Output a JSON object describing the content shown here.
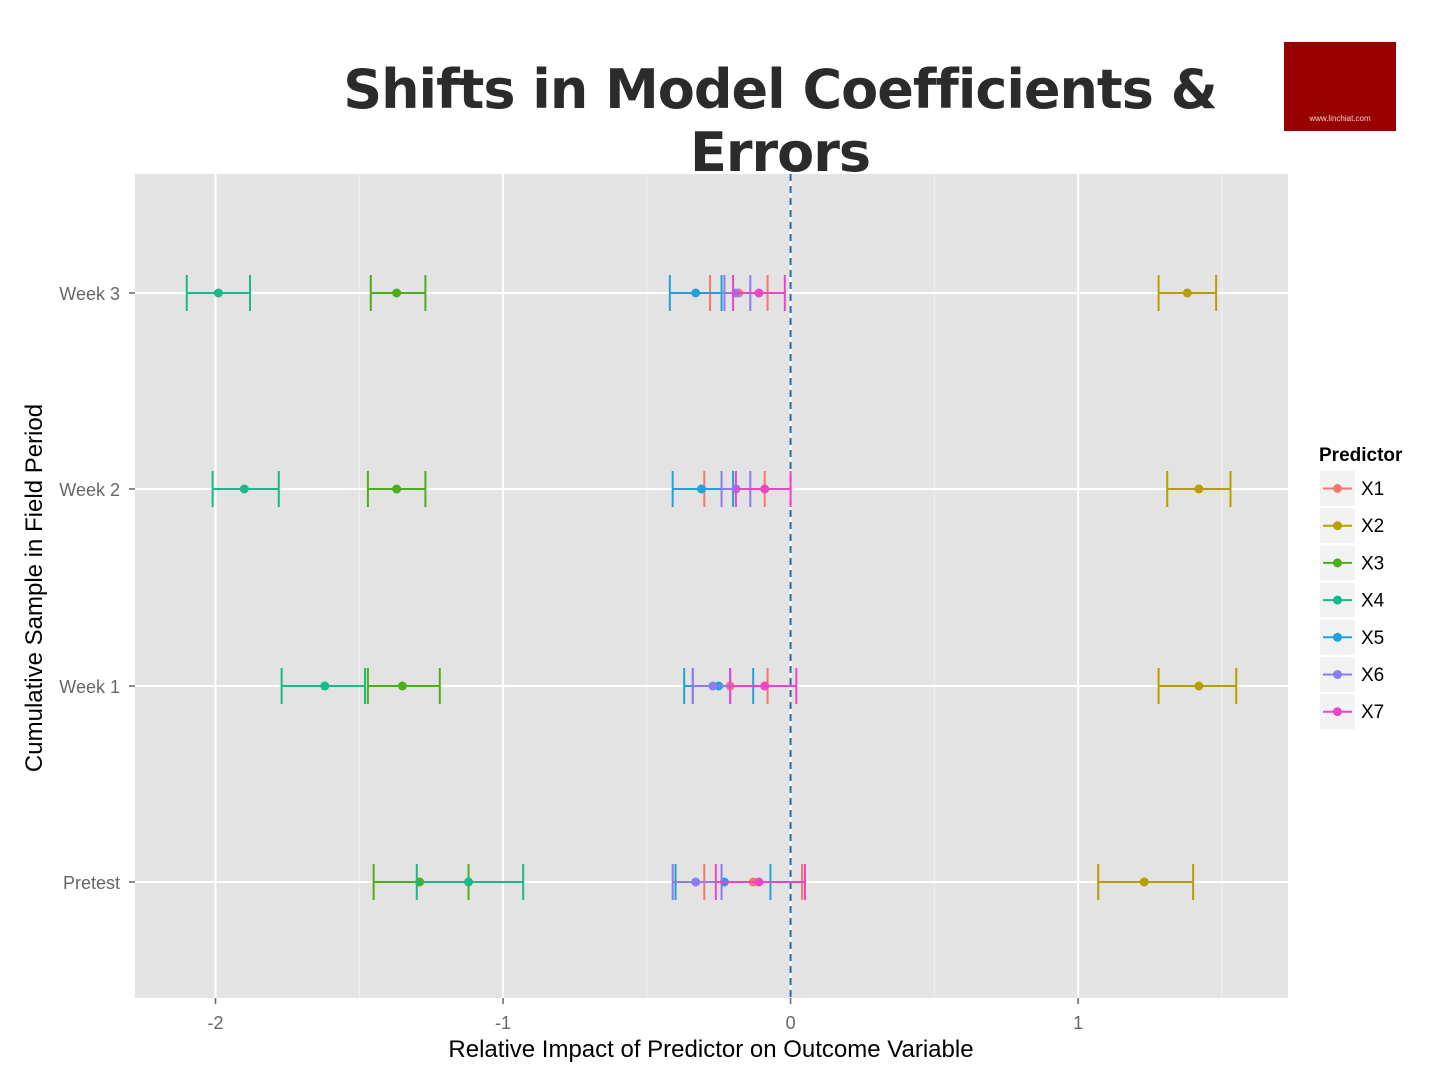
{
  "title": "Shifts in Model Coefficients & Errors",
  "logo": {
    "text": "www.linchiat.com",
    "color": "#990000"
  },
  "chart_data": {
    "type": "errorbar",
    "xlabel": "Relative Impact of Predictor on Outcome Variable",
    "ylabel": "Cumulative Sample in Field Period",
    "xlim": [
      -2.28,
      1.73
    ],
    "x_ticks": [
      -2,
      -1,
      0,
      1
    ],
    "categories": [
      "Pretest",
      "Week 1",
      "Week 2",
      "Week 3"
    ],
    "reference_line": {
      "x": 0,
      "style": "dashed",
      "color": "#2e6a9e"
    },
    "grid": true,
    "legend": {
      "title": "Predictor",
      "position": "right"
    },
    "series": [
      {
        "name": "X1",
        "color": "#F8766D",
        "points": [
          {
            "category": "Pretest",
            "estimate": -0.13,
            "lower": -0.3,
            "upper": 0.04
          },
          {
            "category": "Week 1",
            "estimate": -0.21,
            "lower": -0.34,
            "upper": -0.08
          },
          {
            "category": "Week 2",
            "estimate": -0.19,
            "lower": -0.3,
            "upper": -0.09
          },
          {
            "category": "Week 3",
            "estimate": -0.18,
            "lower": -0.28,
            "upper": -0.08
          }
        ]
      },
      {
        "name": "X2",
        "color": "#B79F00",
        "points": [
          {
            "category": "Pretest",
            "estimate": 1.23,
            "lower": 1.07,
            "upper": 1.4
          },
          {
            "category": "Week 1",
            "estimate": 1.42,
            "lower": 1.28,
            "upper": 1.55
          },
          {
            "category": "Week 2",
            "estimate": 1.42,
            "lower": 1.31,
            "upper": 1.53
          },
          {
            "category": "Week 3",
            "estimate": 1.38,
            "lower": 1.28,
            "upper": 1.48
          }
        ]
      },
      {
        "name": "X3",
        "color": "#4DAF18",
        "points": [
          {
            "category": "Pretest",
            "estimate": -1.29,
            "lower": -1.45,
            "upper": -1.12
          },
          {
            "category": "Week 1",
            "estimate": -1.35,
            "lower": -1.47,
            "upper": -1.22
          },
          {
            "category": "Week 2",
            "estimate": -1.37,
            "lower": -1.47,
            "upper": -1.27
          },
          {
            "category": "Week 3",
            "estimate": -1.37,
            "lower": -1.46,
            "upper": -1.27
          }
        ]
      },
      {
        "name": "X4",
        "color": "#18B98A",
        "points": [
          {
            "category": "Pretest",
            "estimate": -1.12,
            "lower": -1.3,
            "upper": -0.93
          },
          {
            "category": "Week 1",
            "estimate": -1.62,
            "lower": -1.77,
            "upper": -1.48
          },
          {
            "category": "Week 2",
            "estimate": -1.9,
            "lower": -2.01,
            "upper": -1.78
          },
          {
            "category": "Week 3",
            "estimate": -1.99,
            "lower": -2.1,
            "upper": -1.88
          }
        ]
      },
      {
        "name": "X5",
        "color": "#1FA2DC",
        "points": [
          {
            "category": "Pretest",
            "estimate": -0.23,
            "lower": -0.4,
            "upper": -0.07
          },
          {
            "category": "Week 1",
            "estimate": -0.25,
            "lower": -0.37,
            "upper": -0.13
          },
          {
            "category": "Week 2",
            "estimate": -0.31,
            "lower": -0.41,
            "upper": -0.2
          },
          {
            "category": "Week 3",
            "estimate": -0.33,
            "lower": -0.42,
            "upper": -0.24
          }
        ]
      },
      {
        "name": "X6",
        "color": "#8B7CF0",
        "points": [
          {
            "category": "Pretest",
            "estimate": -0.33,
            "lower": -0.41,
            "upper": -0.24
          },
          {
            "category": "Week 1",
            "estimate": -0.27,
            "lower": -0.34,
            "upper": -0.21
          },
          {
            "category": "Week 2",
            "estimate": -0.19,
            "lower": -0.24,
            "upper": -0.14
          },
          {
            "category": "Week 3",
            "estimate": -0.19,
            "lower": -0.23,
            "upper": -0.14
          }
        ]
      },
      {
        "name": "X7",
        "color": "#EC45C8",
        "points": [
          {
            "category": "Pretest",
            "estimate": -0.11,
            "lower": -0.26,
            "upper": 0.05
          },
          {
            "category": "Week 1",
            "estimate": -0.09,
            "lower": -0.21,
            "upper": 0.02
          },
          {
            "category": "Week 2",
            "estimate": -0.09,
            "lower": -0.19,
            "upper": 0.0
          },
          {
            "category": "Week 3",
            "estimate": -0.11,
            "lower": -0.2,
            "upper": -0.02
          }
        ]
      }
    ]
  }
}
